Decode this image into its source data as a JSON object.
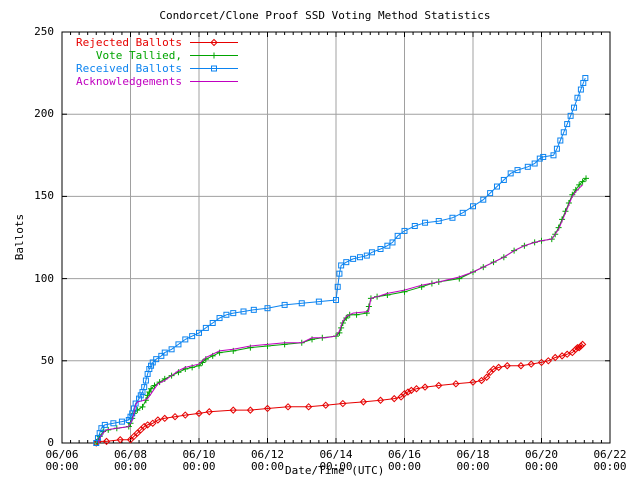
{
  "chart": {
    "title": "Condorcet/Clone Proof SSD Voting Method Statistics",
    "ylabel": "Ballots",
    "xlabel": "Date/Time (UTC)"
  },
  "colors": {
    "background": "#ffffff",
    "axis": "#000000",
    "grid": "#a0a0a0",
    "rejected": "#e60000",
    "tallied": "#00a400",
    "received": "#0b83f0",
    "acknowledgements": "#c000c0"
  },
  "chart_data": {
    "type": "line",
    "title": "Condorcet/Clone Proof SSD Voting Method Statistics",
    "xlabel": "Date/Time (UTC)",
    "ylabel": "Ballots",
    "x_unit": "days since 06/06 00:00 UTC",
    "xlim": [
      0,
      16
    ],
    "ylim": [
      0,
      250
    ],
    "grid": true,
    "legend_position": "top-left",
    "y_ticks": [
      0,
      50,
      100,
      150,
      200,
      250
    ],
    "x_minor_step_days": 0.25,
    "x_ticks": [
      {
        "day": 0,
        "date": "06/06",
        "time": "00:00"
      },
      {
        "day": 2,
        "date": "06/08",
        "time": "00:00"
      },
      {
        "day": 4,
        "date": "06/10",
        "time": "00:00"
      },
      {
        "day": 6,
        "date": "06/12",
        "time": "00:00"
      },
      {
        "day": 8,
        "date": "06/14",
        "time": "00:00"
      },
      {
        "day": 10,
        "date": "06/16",
        "time": "00:00"
      },
      {
        "day": 12,
        "date": "06/18",
        "time": "00:00"
      },
      {
        "day": 14,
        "date": "06/20",
        "time": "00:00"
      },
      {
        "day": 16,
        "date": "06/22",
        "time": "00:00"
      }
    ],
    "series": [
      {
        "name": "Rejected Ballots",
        "color": "#e60000",
        "marker": "diamond",
        "points": [
          [
            1.0,
            0
          ],
          [
            1.05,
            1
          ],
          [
            1.3,
            1
          ],
          [
            1.7,
            2
          ],
          [
            2.0,
            2
          ],
          [
            2.1,
            4
          ],
          [
            2.2,
            6
          ],
          [
            2.3,
            8
          ],
          [
            2.4,
            10
          ],
          [
            2.5,
            11
          ],
          [
            2.65,
            12
          ],
          [
            2.8,
            14
          ],
          [
            3.0,
            15
          ],
          [
            3.3,
            16
          ],
          [
            3.6,
            17
          ],
          [
            4.0,
            18
          ],
          [
            4.3,
            19
          ],
          [
            5.0,
            20
          ],
          [
            5.5,
            20
          ],
          [
            6.0,
            21
          ],
          [
            6.6,
            22
          ],
          [
            7.2,
            22
          ],
          [
            7.7,
            23
          ],
          [
            8.2,
            24
          ],
          [
            8.8,
            25
          ],
          [
            9.3,
            26
          ],
          [
            9.7,
            27
          ],
          [
            9.9,
            28
          ],
          [
            10.0,
            30
          ],
          [
            10.1,
            31
          ],
          [
            10.2,
            32
          ],
          [
            10.35,
            33
          ],
          [
            10.6,
            34
          ],
          [
            11.0,
            35
          ],
          [
            11.5,
            36
          ],
          [
            12.0,
            37
          ],
          [
            12.25,
            38
          ],
          [
            12.4,
            40
          ],
          [
            12.5,
            43
          ],
          [
            12.6,
            45
          ],
          [
            12.75,
            46
          ],
          [
            13.0,
            47
          ],
          [
            13.4,
            47
          ],
          [
            13.7,
            48
          ],
          [
            14.0,
            49
          ],
          [
            14.2,
            50
          ],
          [
            14.4,
            52
          ],
          [
            14.6,
            53
          ],
          [
            14.75,
            54
          ],
          [
            14.9,
            55
          ],
          [
            15.0,
            57
          ],
          [
            15.05,
            58
          ],
          [
            15.1,
            58
          ],
          [
            15.15,
            59
          ],
          [
            15.2,
            60
          ]
        ]
      },
      {
        "name": "    Vote Tallied,",
        "color": "#00a400",
        "marker": "plus",
        "points": [
          [
            1.0,
            0
          ],
          [
            1.05,
            2
          ],
          [
            1.1,
            4
          ],
          [
            1.2,
            7
          ],
          [
            1.35,
            8
          ],
          [
            1.6,
            9
          ],
          [
            1.95,
            10
          ],
          [
            2.0,
            12
          ],
          [
            2.05,
            15
          ],
          [
            2.1,
            18
          ],
          [
            2.2,
            20
          ],
          [
            2.35,
            22
          ],
          [
            2.45,
            26
          ],
          [
            2.5,
            29
          ],
          [
            2.55,
            31
          ],
          [
            2.6,
            33
          ],
          [
            2.7,
            35
          ],
          [
            2.85,
            37
          ],
          [
            3.0,
            39
          ],
          [
            3.2,
            41
          ],
          [
            3.4,
            43
          ],
          [
            3.6,
            45
          ],
          [
            3.8,
            46
          ],
          [
            4.0,
            47
          ],
          [
            4.1,
            49
          ],
          [
            4.2,
            51
          ],
          [
            4.4,
            53
          ],
          [
            4.6,
            55
          ],
          [
            5.0,
            56
          ],
          [
            5.5,
            58
          ],
          [
            6.0,
            59
          ],
          [
            6.5,
            60
          ],
          [
            7.0,
            61
          ],
          [
            7.3,
            63
          ],
          [
            7.6,
            64
          ],
          [
            8.0,
            65
          ],
          [
            8.1,
            67
          ],
          [
            8.15,
            70
          ],
          [
            8.2,
            73
          ],
          [
            8.3,
            76
          ],
          [
            8.4,
            78
          ],
          [
            8.6,
            78
          ],
          [
            8.9,
            79
          ],
          [
            8.96,
            83
          ],
          [
            9.02,
            88
          ],
          [
            9.2,
            89
          ],
          [
            9.5,
            90
          ],
          [
            10.0,
            92
          ],
          [
            10.5,
            95
          ],
          [
            10.8,
            97
          ],
          [
            11.0,
            98
          ],
          [
            11.6,
            100
          ],
          [
            12.0,
            104
          ],
          [
            12.3,
            107
          ],
          [
            12.6,
            110
          ],
          [
            12.9,
            113
          ],
          [
            13.2,
            117
          ],
          [
            13.5,
            120
          ],
          [
            13.8,
            122
          ],
          [
            14.0,
            123
          ],
          [
            14.3,
            124
          ],
          [
            14.4,
            127
          ],
          [
            14.5,
            131
          ],
          [
            14.6,
            136
          ],
          [
            14.7,
            141
          ],
          [
            14.8,
            146
          ],
          [
            14.9,
            151
          ],
          [
            15.0,
            154
          ],
          [
            15.1,
            157
          ],
          [
            15.2,
            159
          ],
          [
            15.3,
            161
          ]
        ]
      },
      {
        "name": "Received Ballots",
        "color": "#0b83f0",
        "marker": "square",
        "points": [
          [
            1.0,
            0
          ],
          [
            1.05,
            3
          ],
          [
            1.1,
            6
          ],
          [
            1.15,
            9
          ],
          [
            1.25,
            11
          ],
          [
            1.5,
            12
          ],
          [
            1.75,
            13
          ],
          [
            1.95,
            14
          ],
          [
            2.0,
            16
          ],
          [
            2.05,
            18
          ],
          [
            2.1,
            21
          ],
          [
            2.15,
            24
          ],
          [
            2.25,
            27
          ],
          [
            2.3,
            29
          ],
          [
            2.35,
            31
          ],
          [
            2.4,
            34
          ],
          [
            2.45,
            38
          ],
          [
            2.5,
            42
          ],
          [
            2.55,
            45
          ],
          [
            2.6,
            47
          ],
          [
            2.65,
            49
          ],
          [
            2.75,
            51
          ],
          [
            2.9,
            53
          ],
          [
            3.0,
            55
          ],
          [
            3.2,
            57
          ],
          [
            3.4,
            60
          ],
          [
            3.6,
            63
          ],
          [
            3.8,
            65
          ],
          [
            4.0,
            67
          ],
          [
            4.2,
            70
          ],
          [
            4.4,
            73
          ],
          [
            4.6,
            76
          ],
          [
            4.8,
            78
          ],
          [
            5.0,
            79
          ],
          [
            5.3,
            80
          ],
          [
            5.6,
            81
          ],
          [
            6.0,
            82
          ],
          [
            6.5,
            84
          ],
          [
            7.0,
            85
          ],
          [
            7.5,
            86
          ],
          [
            8.0,
            87
          ],
          [
            8.05,
            95
          ],
          [
            8.1,
            103
          ],
          [
            8.15,
            108
          ],
          [
            8.3,
            110
          ],
          [
            8.5,
            112
          ],
          [
            8.7,
            113
          ],
          [
            8.9,
            114
          ],
          [
            9.05,
            116
          ],
          [
            9.3,
            118
          ],
          [
            9.5,
            120
          ],
          [
            9.65,
            122
          ],
          [
            9.8,
            126
          ],
          [
            10.0,
            129
          ],
          [
            10.3,
            132
          ],
          [
            10.6,
            134
          ],
          [
            11.0,
            135
          ],
          [
            11.4,
            137
          ],
          [
            11.7,
            140
          ],
          [
            12.0,
            144
          ],
          [
            12.3,
            148
          ],
          [
            12.5,
            152
          ],
          [
            12.7,
            156
          ],
          [
            12.9,
            160
          ],
          [
            13.1,
            164
          ],
          [
            13.3,
            166
          ],
          [
            13.6,
            168
          ],
          [
            13.8,
            170
          ],
          [
            13.95,
            173
          ],
          [
            14.05,
            174
          ],
          [
            14.35,
            175
          ],
          [
            14.45,
            179
          ],
          [
            14.55,
            184
          ],
          [
            14.65,
            189
          ],
          [
            14.75,
            194
          ],
          [
            14.85,
            199
          ],
          [
            14.95,
            204
          ],
          [
            15.05,
            210
          ],
          [
            15.15,
            215
          ],
          [
            15.22,
            219
          ],
          [
            15.28,
            222
          ]
        ]
      },
      {
        "name": "Acknowledgements",
        "color": "#c000c0",
        "marker": "none",
        "points": [
          [
            1.05,
            0
          ],
          [
            1.1,
            3
          ],
          [
            1.2,
            6
          ],
          [
            1.3,
            8
          ],
          [
            1.6,
            9
          ],
          [
            1.95,
            10
          ],
          [
            2.05,
            14
          ],
          [
            2.1,
            18
          ],
          [
            2.15,
            23
          ],
          [
            2.2,
            25
          ],
          [
            2.4,
            26
          ],
          [
            2.5,
            27
          ],
          [
            2.6,
            30
          ],
          [
            2.7,
            33
          ],
          [
            2.8,
            36
          ],
          [
            3.0,
            38
          ],
          [
            3.2,
            41
          ],
          [
            3.4,
            44
          ],
          [
            3.6,
            46
          ],
          [
            3.8,
            47
          ],
          [
            4.0,
            48
          ],
          [
            4.2,
            52
          ],
          [
            4.4,
            54
          ],
          [
            4.6,
            56
          ],
          [
            5.0,
            57
          ],
          [
            5.5,
            59
          ],
          [
            6.0,
            60
          ],
          [
            6.5,
            61
          ],
          [
            7.0,
            61
          ],
          [
            7.3,
            64
          ],
          [
            7.7,
            64
          ],
          [
            8.0,
            65
          ],
          [
            8.1,
            68
          ],
          [
            8.2,
            74
          ],
          [
            8.3,
            77
          ],
          [
            8.5,
            79
          ],
          [
            8.95,
            80
          ],
          [
            9.02,
            88
          ],
          [
            9.2,
            89
          ],
          [
            9.5,
            91
          ],
          [
            10.0,
            93
          ],
          [
            10.5,
            96
          ],
          [
            11.0,
            98
          ],
          [
            11.6,
            101
          ],
          [
            12.0,
            104
          ],
          [
            12.3,
            107
          ],
          [
            12.6,
            110
          ],
          [
            12.9,
            113
          ],
          [
            13.2,
            117
          ],
          [
            13.5,
            120
          ],
          [
            13.8,
            122
          ],
          [
            14.0,
            123
          ],
          [
            14.3,
            124
          ],
          [
            14.5,
            130
          ],
          [
            14.7,
            140
          ],
          [
            14.9,
            150
          ],
          [
            15.0,
            153
          ],
          [
            15.1,
            155
          ],
          [
            15.2,
            157
          ]
        ]
      }
    ]
  }
}
